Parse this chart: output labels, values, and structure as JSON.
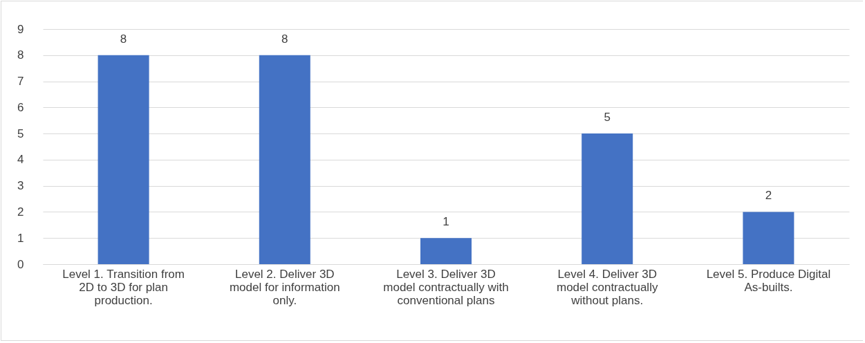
{
  "chart_data": {
    "type": "bar",
    "categories": [
      "Level 1. Transition from 2D to 3D for plan production.",
      "Level 2. Deliver 3D model for information only.",
      "Level 3. Deliver 3D model contractually with conventional plans",
      "Level 4.  Deliver 3D model contractually without plans.",
      "Level 5.  Produce Digital As-builts."
    ],
    "values": [
      8,
      8,
      1,
      5,
      2
    ],
    "color": "#4472c4",
    "ylim": [
      0,
      9
    ],
    "yticks": [
      0,
      1,
      2,
      3,
      4,
      5,
      6,
      7,
      8,
      9
    ],
    "grid": "y",
    "data_labels": true
  }
}
